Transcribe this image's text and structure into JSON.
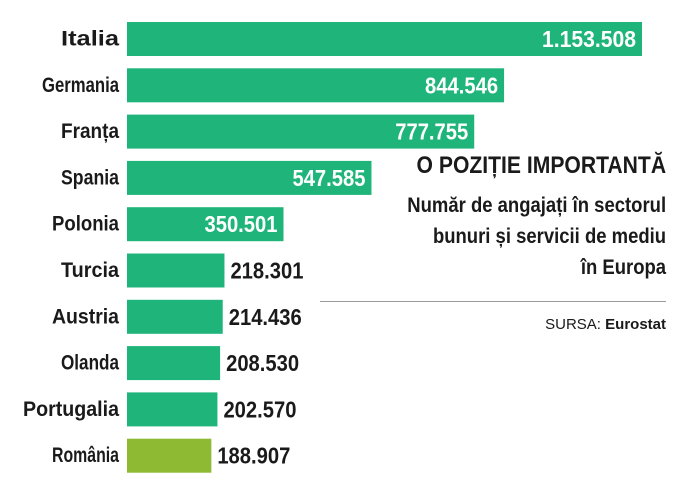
{
  "chart_data": {
    "type": "bar",
    "orientation": "horizontal",
    "categories": [
      "Italia",
      "Germania",
      "Franța",
      "Spania",
      "Polonia",
      "Turcia",
      "Austria",
      "Olanda",
      "Portugalia",
      "România"
    ],
    "values": [
      1153508,
      844546,
      777755,
      547585,
      350501,
      218301,
      214436,
      208530,
      202570,
      188907
    ],
    "value_labels": [
      "1.153.508",
      "844.546",
      "777.755",
      "547.585",
      "350.501",
      "218.301",
      "214.436",
      "208.530",
      "202.570",
      "188.907"
    ],
    "colors": {
      "bar": "#1fb57a",
      "highlight_bar": "#8dba32",
      "highlight_category": "România",
      "label_inside": "#ffffff",
      "label_outside": "#1a1a1a"
    },
    "grid": false,
    "legend": "none"
  },
  "title": "O POZIȚIE IMPORTANTĂ",
  "subtitle_lines": [
    "Număr de angajați în sectorul",
    "bunuri și servicii de mediu",
    "în Europa"
  ],
  "source": {
    "label": "SURSA:",
    "value": "Eurostat"
  }
}
